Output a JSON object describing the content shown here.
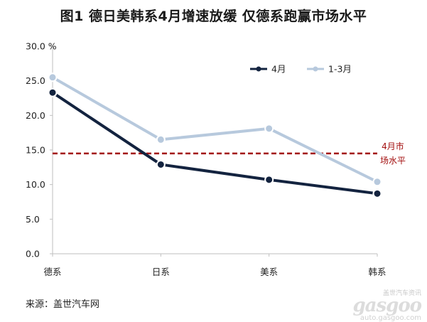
{
  "title": "图1  德日美韩系4月增速放缓 仅德系跑赢市场水平",
  "source": "来源：盖世汽车网",
  "watermark": {
    "logo": "gasgoo",
    "sub": "盖世汽车资讯",
    "url": "auto.gasgoo.com"
  },
  "chart_data": {
    "type": "line",
    "categories": [
      "德系",
      "日系",
      "美系",
      "韩系"
    ],
    "series": [
      {
        "name": "4月",
        "values": [
          23.3,
          12.9,
          10.7,
          8.7
        ],
        "color": "#13233f"
      },
      {
        "name": "1-3月",
        "values": [
          25.5,
          16.5,
          18.1,
          10.4
        ],
        "color": "#b7c9dd"
      }
    ],
    "reference_line": {
      "value": 14.5,
      "label_line1": "4月市",
      "label_line2": "场水平",
      "color": "#a30f0f",
      "style": "dashed"
    },
    "ylim": [
      0,
      30
    ],
    "yticks": [
      {
        "value": 0,
        "label": "0.0"
      },
      {
        "value": 5,
        "label": "5.0"
      },
      {
        "value": 10,
        "label": "10.0"
      },
      {
        "value": 15,
        "label": "15.0"
      },
      {
        "value": 20,
        "label": "20.0"
      },
      {
        "value": 25,
        "label": "25.0"
      },
      {
        "value": 30,
        "label": "30.0 %"
      }
    ],
    "grid": false,
    "legend_position": "top-right"
  }
}
